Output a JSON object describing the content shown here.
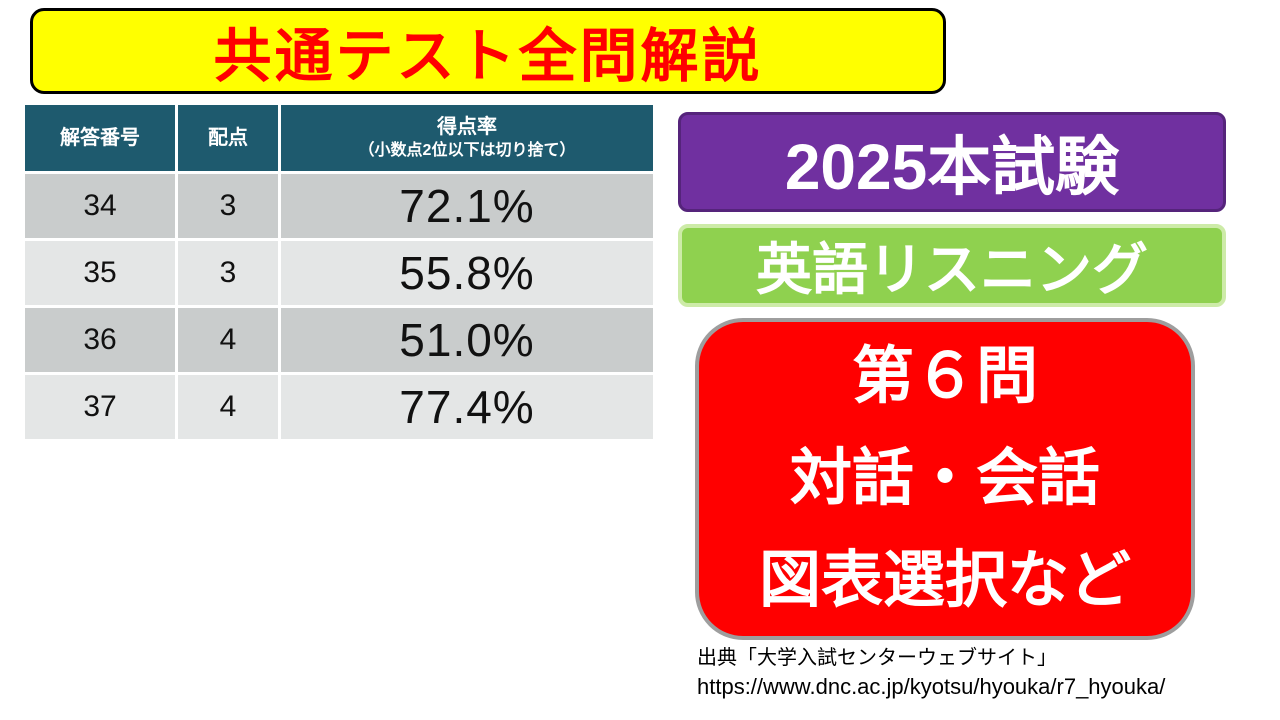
{
  "colors": {
    "banner_bg": "#FFFF00",
    "banner_text": "#FF0000",
    "table_header_bg": "#1E5A6E",
    "table_row_dark": "#C9CCCC",
    "table_row_light": "#E4E6E6",
    "purple_badge_bg": "#7030A0",
    "green_badge_bg": "#8FD14F",
    "red_box_bg": "#FF0000",
    "badge_text": "#FFFFFF"
  },
  "banner": {
    "title": "共通テスト全問解説"
  },
  "table": {
    "headers": {
      "answer_number": "解答番号",
      "points": "配点",
      "rate_line1": "得点率",
      "rate_line2": "（小数点2位以下は切り捨て）"
    },
    "rows": [
      {
        "no": "34",
        "points": "3",
        "rate": "72.1%"
      },
      {
        "no": "35",
        "points": "3",
        "rate": "55.8%"
      },
      {
        "no": "36",
        "points": "4",
        "rate": "51.0%"
      },
      {
        "no": "37",
        "points": "4",
        "rate": "77.4%"
      }
    ]
  },
  "badges": {
    "exam_year": "2025本試験",
    "subject": "英語リスニング",
    "question_lines": [
      "第６問",
      "対話・会話",
      "図表選択など"
    ]
  },
  "source": {
    "line1": "出典「大学入試センターウェブサイト」",
    "line2": "https://www.dnc.ac.jp/kyotsu/hyouka/r7_hyouka/"
  }
}
